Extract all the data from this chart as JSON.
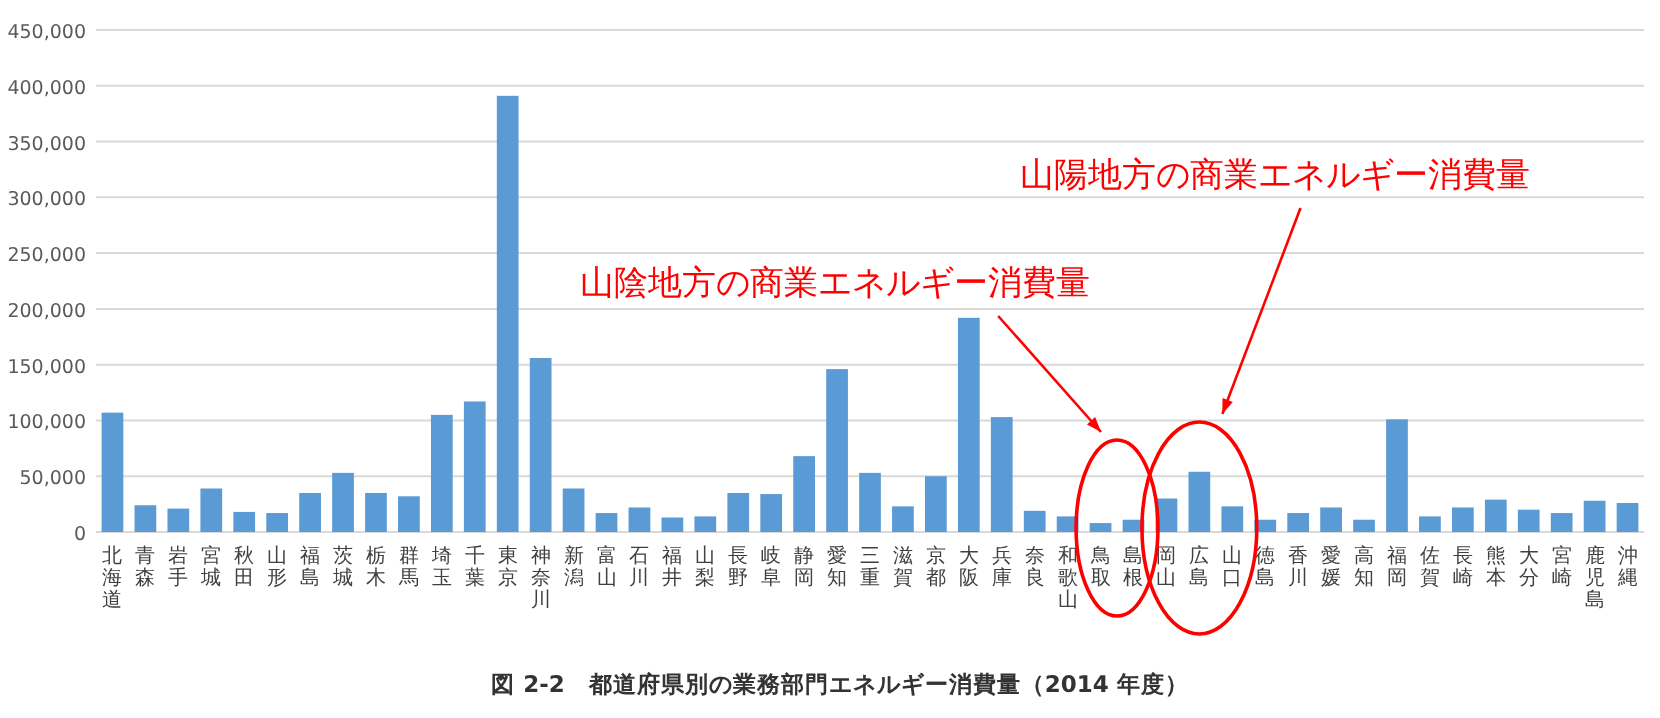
{
  "chart_data": {
    "type": "bar",
    "title": "図 2-2　都道府県別の業務部門エネルギー消費量（2014 年度）",
    "categories": [
      "北海道",
      "青森",
      "岩手",
      "宮城",
      "秋田",
      "山形",
      "福島",
      "茨城",
      "栃木",
      "群馬",
      "埼玉",
      "千葉",
      "東京",
      "神奈川",
      "新潟",
      "富山",
      "石川",
      "福井",
      "山梨",
      "長野",
      "岐阜",
      "静岡",
      "愛知",
      "三重",
      "滋賀",
      "京都",
      "大阪",
      "兵庫",
      "奈良",
      "和歌山",
      "鳥取",
      "島根",
      "岡山",
      "広島",
      "山口",
      "徳島",
      "香川",
      "愛媛",
      "高知",
      "福岡",
      "佐賀",
      "長崎",
      "熊本",
      "大分",
      "宮崎",
      "鹿児島",
      "沖縄"
    ],
    "values": [
      107000,
      24000,
      21000,
      39000,
      18000,
      17000,
      35000,
      53000,
      35000,
      32000,
      105000,
      117000,
      391000,
      156000,
      39000,
      17000,
      22000,
      13000,
      14000,
      35000,
      34000,
      68000,
      146000,
      53000,
      23000,
      50000,
      192000,
      103000,
      19000,
      14000,
      8000,
      11000,
      30000,
      54000,
      23000,
      11000,
      17000,
      22000,
      11000,
      101000,
      14000,
      22000,
      29000,
      20000,
      17000,
      28000,
      26000
    ],
    "color": "#5b9bd5",
    "ylim": [
      0,
      450000
    ],
    "yticks": [
      {
        "value": 0,
        "label": "0"
      },
      {
        "value": 50000,
        "label": "50,000"
      },
      {
        "value": 100000,
        "label": "100,000"
      },
      {
        "value": 150000,
        "label": "150,000"
      },
      {
        "value": 200000,
        "label": "200,000"
      },
      {
        "value": 250000,
        "label": "250,000"
      },
      {
        "value": 300000,
        "label": "300,000"
      },
      {
        "value": 350000,
        "label": "350,000"
      },
      {
        "value": 400000,
        "label": "400,000"
      },
      {
        "value": 450000,
        "label": "450,000"
      }
    ],
    "grid": "y",
    "annotations": [
      "山陰地方の商業エネルギー消費量",
      "山陽地方の商業エネルギー消費量"
    ]
  }
}
